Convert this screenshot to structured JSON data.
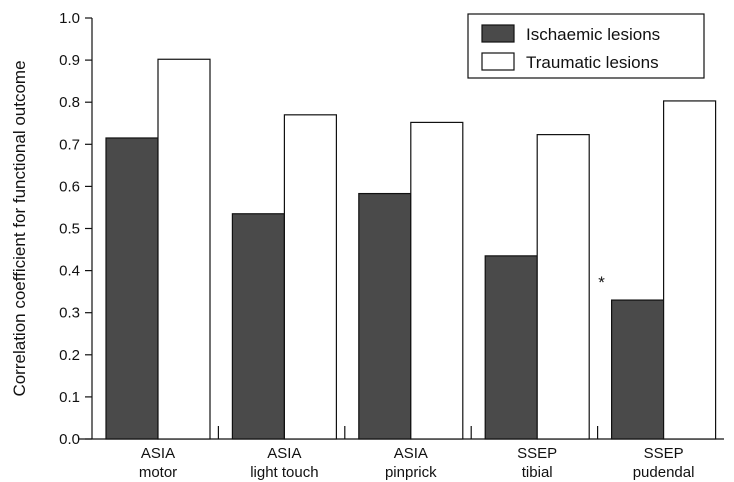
{
  "chart_data": {
    "type": "bar",
    "categories": [
      [
        "ASIA",
        "motor"
      ],
      [
        "ASIA",
        "light touch"
      ],
      [
        "ASIA",
        "pinprick"
      ],
      [
        "SSEP",
        "tibial"
      ],
      [
        "SSEP",
        "pudendal"
      ]
    ],
    "series": [
      {
        "name": "Ischaemic lesions",
        "values": [
          0.715,
          0.535,
          0.583,
          0.435,
          0.33
        ],
        "color": "#4a4a4a"
      },
      {
        "name": "Traumatic lesions",
        "values": [
          0.902,
          0.77,
          0.752,
          0.723,
          0.803
        ],
        "color": "#ffffff"
      }
    ],
    "ylabel": "Correlation coefficient for functional outcome",
    "xlabel": "",
    "ylim": [
      0,
      1.0
    ],
    "yticks": [
      "0.0",
      "0.1",
      "0.2",
      "0.3",
      "0.4",
      "0.5",
      "0.6",
      "0.7",
      "0.8",
      "0.9",
      "1.0"
    ],
    "legend_position": "top-right",
    "grid": false,
    "annotations": [
      {
        "text": "*",
        "category_index": 4,
        "series_index": 0
      }
    ]
  }
}
